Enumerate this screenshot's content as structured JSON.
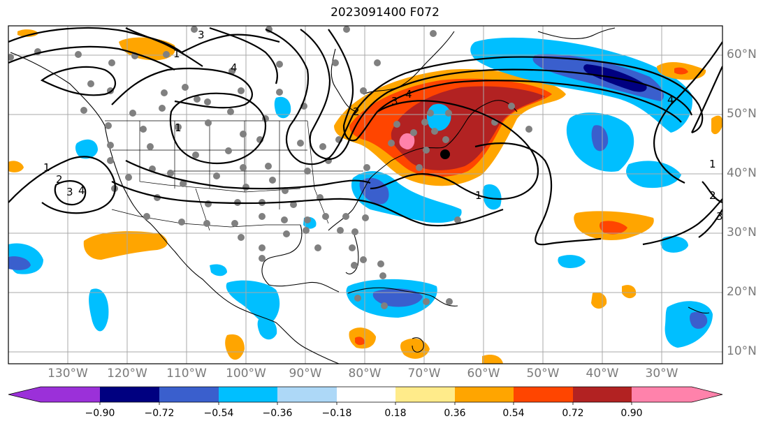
{
  "title": "2023091400 F072",
  "lat_labels": [
    "60°N",
    "50°N",
    "40°N",
    "30°N",
    "20°N",
    "10°N"
  ],
  "lon_labels": [
    "130°W",
    "120°W",
    "110°W",
    "100°W",
    "90°W",
    "80°W",
    "70°W",
    "60°W",
    "50°W",
    "40°W",
    "30°W"
  ],
  "colorbar": {
    "tick_labels": [
      "−0.90",
      "−0.72",
      "−0.54",
      "−0.36",
      "−0.18",
      "0.18",
      "0.36",
      "0.54",
      "0.72",
      "0.90"
    ],
    "colors": [
      "#9b30d9",
      "#000080",
      "#3a5fcd",
      "#00bfff",
      "#add8f7",
      "#ffffff",
      "#ffeb8a",
      "#ffa500",
      "#ff4500",
      "#b22222",
      "#ff82ab"
    ]
  },
  "contour_labels": [
    "1",
    "2",
    "3",
    "4"
  ],
  "palette": {
    "pink": "#ff82ab",
    "darkred": "#b22222",
    "red": "#ff4500",
    "orange": "#ffa500",
    "lightblue": "#add8f7",
    "cyan": "#00bfff",
    "blue": "#3a5fcd",
    "navy": "#000080"
  }
}
